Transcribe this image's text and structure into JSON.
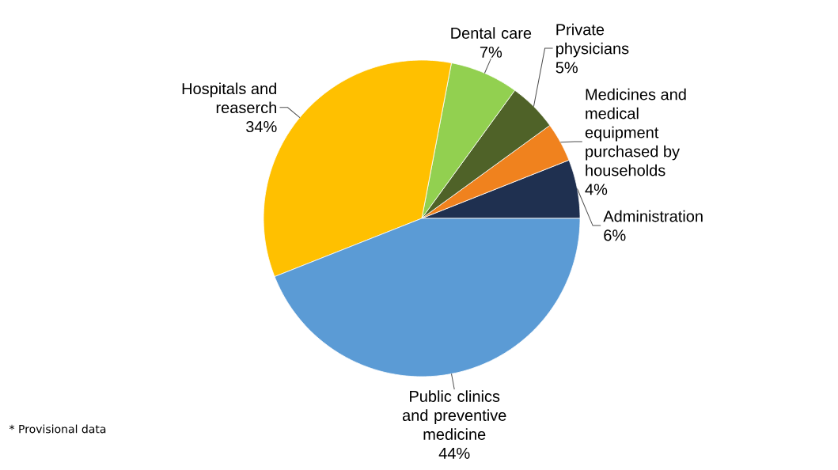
{
  "chart_data": {
    "type": "pie",
    "categories": [
      "Administration",
      "Medicines and medical equipment purchased by households",
      "Private physicians",
      "Dental care",
      "Hospitals and reaserch",
      "Public clinics and preventive medicine"
    ],
    "values": [
      6,
      4,
      5,
      7,
      34,
      44
    ],
    "value_labels": [
      "6%",
      "4%",
      "5%",
      "7%",
      "34%",
      "44%"
    ],
    "colors": [
      "#1f3050",
      "#f0821e",
      "#4f6228",
      "#92d050",
      "#ffc000",
      "#5b9bd5"
    ],
    "annotations": [
      "* Provisional data"
    ]
  }
}
